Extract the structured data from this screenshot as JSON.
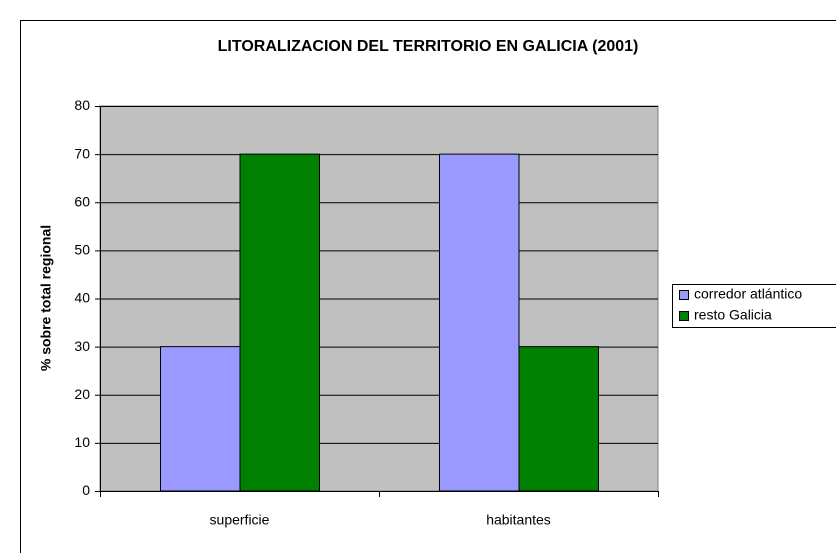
{
  "chart_data": {
    "type": "bar",
    "title": "LITORALIZACION DEL TERRITORIO EN GALICIA (2001)",
    "y_label": "% sobre total regional",
    "categories": [
      "superficie",
      "habitantes"
    ],
    "series": [
      {
        "name": "corredor atlántico",
        "color": "#9999ff",
        "values": [
          30,
          70
        ]
      },
      {
        "name": "resto Galicia",
        "color": "#008000",
        "values": [
          70,
          30
        ]
      }
    ],
    "ylim": [
      0,
      80
    ],
    "yticks": [
      0,
      10,
      20,
      30,
      40,
      50,
      60,
      70,
      80
    ],
    "grid": true,
    "legend": "right",
    "plot_background": "#c0c0c0"
  }
}
